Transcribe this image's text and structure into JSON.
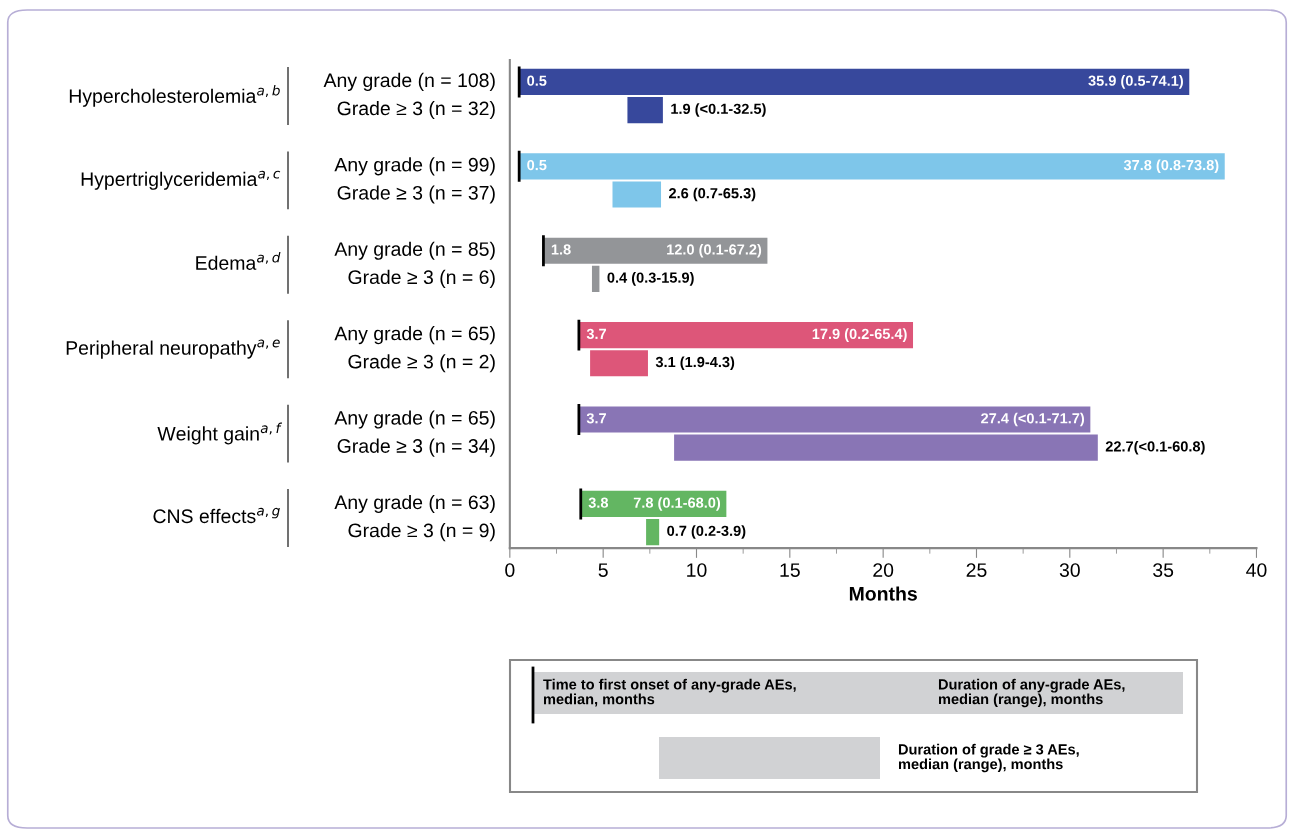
{
  "chart_data": {
    "type": "bar",
    "orientation": "horizontal",
    "xlabel": "Months",
    "categories": [
      "Any grade (n = 108)",
      "Grade ≥ 3 (n = 32)",
      "Any grade (n = 99)",
      "Grade ≥ 3 (n = 37)",
      "Any grade (n = 85)",
      "Grade ≥ 3 (n = 6)",
      "Any grade (n = 65)",
      "Grade ≥ 3 (n = 2)",
      "Any grade (n = 65)",
      "Grade ≥ 3 (n = 34)",
      "Any grade (n = 63)",
      "Grade ≥ 3 (n = 9)"
    ],
    "values": [
      35.9,
      1.9,
      37.8,
      2.6,
      12.0,
      0.4,
      17.9,
      3.1,
      27.4,
      22.7,
      7.8,
      0.7
    ],
    "base": [
      0.5,
      6.3,
      0.5,
      5.5,
      1.8,
      4.4,
      3.7,
      4.3,
      3.7,
      8.8,
      3.8,
      7.3
    ],
    "colors": [
      "#37489c",
      "#37489c",
      "#7ec6ea",
      "#7ec6ea",
      "#939598",
      "#939598",
      "#dd5679",
      "#dd5679",
      "#8975b5",
      "#8975b5",
      "#63b662",
      "#63b662"
    ],
    "value_labels": [
      "35.9 (0.5-74.1)",
      "1.9 (<0.1-32.5)",
      "37.8 (0.8-73.8)",
      "2.6 (0.7-65.3)",
      "12.0 (0.1-67.2)",
      "0.4 (0.3-15.9)",
      "17.9 (0.2-65.4)",
      "3.1 (1.9-4.3)",
      "27.4 (<0.1-71.7)",
      "22.7(<0.1-60.8)",
      "7.8 (0.1-68.0)",
      "0.7 (0.2-3.9)"
    ],
    "xlim": [
      0,
      40
    ],
    "xticks": [
      0,
      5,
      10,
      15,
      20,
      25,
      30,
      35,
      40
    ],
    "grid": false,
    "annotations": [
      "Hypercholesterolemia$^{a,b}$",
      "Hypertriglyceridemia$^{a,c}$",
      "Edema$^{a,d}$",
      "Peripheral neuropathy$^{a,e}$",
      "Weight gain$^{a,f}$",
      "CNS effects$^{a,g}$",
      {
        "text": "0.5",
        "x": 0.5
      },
      {
        "text": "0.5",
        "x": 0.5
      },
      {
        "text": "1.8",
        "x": 1.8
      },
      {
        "text": "3.7",
        "x": 3.7
      },
      {
        "text": "3.7",
        "x": 3.7
      },
      {
        "text": "3.8",
        "x": 3.8
      },
      "Time to first onset of any-grade AEs,\nmedian, months",
      "Duration of any-grade AEs,\nmedian (range), months",
      "Duration of grade ≥ 3 AEs,\nmedian (range), months"
    ]
  }
}
